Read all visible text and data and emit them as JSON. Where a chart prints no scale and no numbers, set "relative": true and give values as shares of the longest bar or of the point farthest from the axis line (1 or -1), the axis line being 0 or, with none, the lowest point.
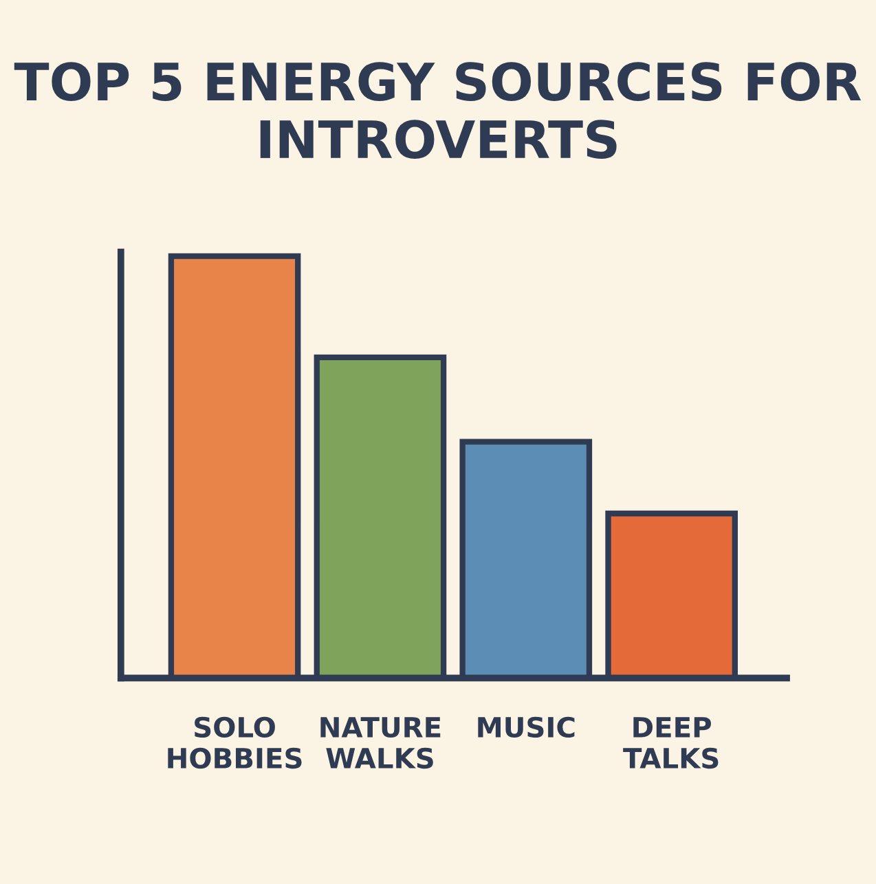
{
  "chart_data": {
    "type": "bar",
    "title": "TOP 5 ENERGY SOURCES FOR INTROVERTS",
    "categories": [
      "SOLO\nHOBBIES",
      "NATURE\nWALKS",
      "MUSIC",
      "DEEP\nTALKS"
    ],
    "values": [
      1,
      0.76,
      0.56,
      0.39
    ],
    "colors": [
      "#e8844a",
      "#7fa35a",
      "#5b8db5",
      "#e56a3a"
    ],
    "relative": true,
    "grid": false,
    "legend": false
  }
}
